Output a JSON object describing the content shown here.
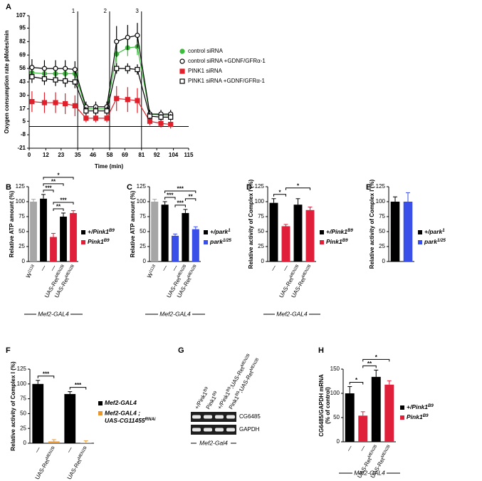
{
  "chart_data": [
    {
      "type": "line",
      "panel": "A",
      "ylabel": "Oxygen consumption rate pMoles/min",
      "xlabel": "Time (min)",
      "xlim": [
        0,
        115
      ],
      "ylim": [
        -21,
        107
      ],
      "xticks": [
        0,
        12,
        23,
        35,
        46,
        58,
        69,
        81,
        92,
        104,
        115
      ],
      "yticks": [
        -21,
        -8,
        5,
        17,
        30,
        43,
        56,
        69,
        82,
        95,
        107
      ],
      "x": [
        2,
        11,
        19,
        26,
        33,
        41,
        48,
        56,
        63,
        71,
        78,
        87,
        95,
        102
      ],
      "vlines": [
        {
          "x": 35,
          "label": "1"
        },
        {
          "x": 58,
          "label": "2"
        },
        {
          "x": 81,
          "label": "3"
        }
      ],
      "series": [
        {
          "name": "control siRNA",
          "color": "#3dbb3d",
          "marker": "circle",
          "filled": true,
          "values": [
            52,
            51,
            51,
            51,
            51,
            17,
            17,
            17,
            70,
            76,
            77,
            12,
            11,
            11
          ],
          "errors": [
            5,
            5,
            5,
            5,
            5,
            3,
            3,
            3,
            10,
            8,
            8,
            3,
            3,
            3
          ]
        },
        {
          "name": "control siRNA +GDNF/GFRα-1",
          "color": "#000000",
          "marker": "circle",
          "filled": false,
          "values": [
            57,
            56,
            56,
            56,
            55,
            19,
            19,
            19,
            82,
            86,
            88,
            12,
            12,
            12
          ],
          "errors": [
            8,
            8,
            8,
            8,
            8,
            5,
            5,
            5,
            15,
            12,
            12,
            4,
            4,
            4
          ]
        },
        {
          "name": "PINK1 siRNA",
          "color": "#e0202a",
          "marker": "square",
          "filled": true,
          "values": [
            24,
            23,
            23,
            22,
            20,
            8,
            8,
            8,
            27,
            26,
            25,
            5,
            3,
            2
          ],
          "errors": [
            10,
            10,
            10,
            10,
            10,
            4,
            4,
            4,
            12,
            12,
            12,
            4,
            4,
            4
          ]
        },
        {
          "name": "PINK1 siRNA +GDNF/GFRα-1",
          "color": "#000000",
          "marker": "square",
          "filled": false,
          "values": [
            48,
            46,
            45,
            44,
            43,
            15,
            15,
            15,
            56,
            56,
            55,
            10,
            9,
            9
          ],
          "errors": [
            6,
            6,
            6,
            6,
            6,
            4,
            4,
            4,
            5,
            5,
            5,
            3,
            3,
            3
          ]
        }
      ]
    },
    {
      "type": "bar",
      "panel": "B",
      "ylabel": "Relative ATP amount (%)",
      "ylim": [
        0,
        125
      ],
      "yticks": [
        0,
        25,
        50,
        75,
        100,
        125
      ],
      "categories": [
        "W",
        "—",
        "—",
        "UAS-Ret",
        "UAS-Ret"
      ],
      "category_superscripts": [
        "1118",
        null,
        null,
        "MEN2B",
        "MEN2B"
      ],
      "values": [
        100,
        105,
        41,
        75,
        81
      ],
      "errors": [
        4,
        7,
        6,
        6,
        4
      ],
      "colors": [
        "#a6a6a6",
        "#000000",
        "#e0203a",
        "#000000",
        "#e0203a"
      ],
      "legend": [
        {
          "name": "+/Pink1",
          "sup": "B9",
          "color": "#000000"
        },
        {
          "name": "Pink1",
          "sup": "B9",
          "color": "#e0203a"
        }
      ],
      "brackets": [
        {
          "from": 2,
          "to": 3,
          "label": "**"
        },
        {
          "from": 2,
          "to": 4,
          "label": "***"
        },
        {
          "from": 1,
          "to": 2,
          "label": "***"
        },
        {
          "from": 1,
          "to": 3,
          "label": "**"
        },
        {
          "from": 1,
          "to": 4,
          "label": "*"
        }
      ],
      "footer": "Mef2-GAL4"
    },
    {
      "type": "bar",
      "panel": "C",
      "ylabel": "Relative ATP amount (%)",
      "ylim": [
        0,
        125
      ],
      "yticks": [
        0,
        25,
        50,
        75,
        100,
        125
      ],
      "categories": [
        "W",
        "—",
        "—",
        "UAS-Ret",
        "UAS-Ret"
      ],
      "category_superscripts": [
        "1118",
        null,
        null,
        "MEN2B",
        "MEN2B"
      ],
      "values": [
        100,
        95,
        43,
        81,
        54
      ],
      "errors": [
        4,
        5,
        3,
        6,
        4
      ],
      "colors": [
        "#a6a6a6",
        "#000000",
        "#3a4ee8",
        "#000000",
        "#3a4ee8"
      ],
      "legend": [
        {
          "name": "+/park",
          "sup": "1",
          "color": "#000000"
        },
        {
          "name": "park",
          "sup": "1/25",
          "color": "#3a4ee8"
        }
      ],
      "brackets": [
        {
          "from": 2,
          "to": 3,
          "label": "***"
        },
        {
          "from": 3,
          "to": 4,
          "label": "**"
        },
        {
          "from": 1,
          "to": 2,
          "label": "***"
        },
        {
          "from": 1,
          "to": 4,
          "label": "***"
        }
      ],
      "footer": "Mef2-GAL4"
    },
    {
      "type": "bar",
      "panel": "D",
      "ylabel": "Relative activity of Complex I (%)",
      "ylim": [
        0,
        125
      ],
      "yticks": [
        0,
        25,
        50,
        75,
        100,
        125
      ],
      "categories": [
        "—",
        "—",
        "UAS-Ret",
        "UAS-Ret"
      ],
      "category_superscripts": [
        null,
        null,
        "MEN2B",
        "MEN2B"
      ],
      "values": [
        98,
        59,
        95,
        86
      ],
      "errors": [
        7,
        3,
        10,
        5
      ],
      "colors": [
        "#000000",
        "#e0203a",
        "#000000",
        "#e0203a"
      ],
      "legend": [
        {
          "name": "+/Pink1",
          "sup": "B9",
          "color": "#000000"
        },
        {
          "name": "Pink1",
          "sup": "B9",
          "color": "#e0203a"
        }
      ],
      "brackets": [
        {
          "from": 0,
          "to": 1,
          "label": "*"
        },
        {
          "from": 1,
          "to": 3,
          "label": "*"
        }
      ],
      "footer": "Mef2-GAL4"
    },
    {
      "type": "bar",
      "panel": "E",
      "ylabel": "Relative activity of Complex I (%)",
      "ylim": [
        0,
        125
      ],
      "yticks": [
        0,
        25,
        50,
        75,
        100,
        125
      ],
      "values": [
        100,
        100
      ],
      "errors": [
        8,
        15
      ],
      "colors": [
        "#000000",
        "#3a4ee8"
      ],
      "legend": [
        {
          "name": "+/park",
          "sup": "1",
          "color": "#000000"
        },
        {
          "name": "park",
          "sup": "1/25",
          "color": "#3a4ee8"
        }
      ]
    },
    {
      "type": "bar",
      "panel": "F",
      "ylabel": "Relative activity of Complex I (%)",
      "ylim": [
        0,
        125
      ],
      "yticks": [
        0,
        25,
        50,
        75,
        100,
        125
      ],
      "categories": [
        "—",
        "UAS-Ret",
        "—",
        "UAS-Ret"
      ],
      "category_superscripts": [
        null,
        "MEN2B",
        null,
        "MEN2B"
      ],
      "values": [
        100,
        3,
        83,
        1
      ],
      "errors": [
        6,
        3,
        4,
        3
      ],
      "colors": [
        "#000000",
        "#e8962e",
        "#000000",
        "#e8962e"
      ],
      "legend": [
        {
          "name": "Mef2-GAL4",
          "color": "#000000"
        },
        {
          "name": "Mef2-GAL4 ;",
          "name_line2": "UAS-CG11455",
          "sup": "RNAi",
          "color": "#e8962e"
        }
      ],
      "brackets": [
        {
          "from": 0,
          "to": 1,
          "label": "***"
        },
        {
          "from": 2,
          "to": 3,
          "label": "***"
        }
      ]
    },
    {
      "type": "gel",
      "panel": "G",
      "lanes": [
        {
          "name": "+/Pink1",
          "sup": "B9"
        },
        {
          "name": "Pink1",
          "sup": "B9"
        },
        {
          "name": "+/Pink1",
          "sup": "B9",
          "name2": ";UAS-Ret",
          "sup2": "MEN2B"
        },
        {
          "name": "Pink1",
          "sup": "B9",
          "name2": ";UAS-Ret",
          "sup2": "MEN2B"
        }
      ],
      "bands": [
        "CG6485",
        "GAPDH"
      ],
      "footer": "Mef2-Gal4"
    },
    {
      "type": "bar",
      "panel": "H",
      "ylabel": "CG6485/GAPDH mRNA",
      "ylabel2": "(% of control)",
      "ylim": [
        0,
        150
      ],
      "yticks": [
        0,
        50,
        100,
        150
      ],
      "categories": [
        "—",
        "—",
        "UAS-Ret",
        "UAS-Ret"
      ],
      "category_superscripts": [
        null,
        null,
        "MEN2B",
        "MEN2B"
      ],
      "values": [
        100,
        54,
        134,
        118
      ],
      "errors": [
        14,
        8,
        14,
        8
      ],
      "colors": [
        "#000000",
        "#e0203a",
        "#000000",
        "#e0203a"
      ],
      "legend": [
        {
          "name": "+/Pink1",
          "sup": "B9",
          "color": "#000000"
        },
        {
          "name": "Pink1",
          "sup": "B9",
          "color": "#e0203a"
        }
      ],
      "brackets": [
        {
          "from": 0,
          "to": 1,
          "label": "*"
        },
        {
          "from": 1,
          "to": 2,
          "label": "**"
        },
        {
          "from": 1,
          "to": 3,
          "label": "*"
        }
      ],
      "footer": "Mef2-GAL4"
    }
  ]
}
